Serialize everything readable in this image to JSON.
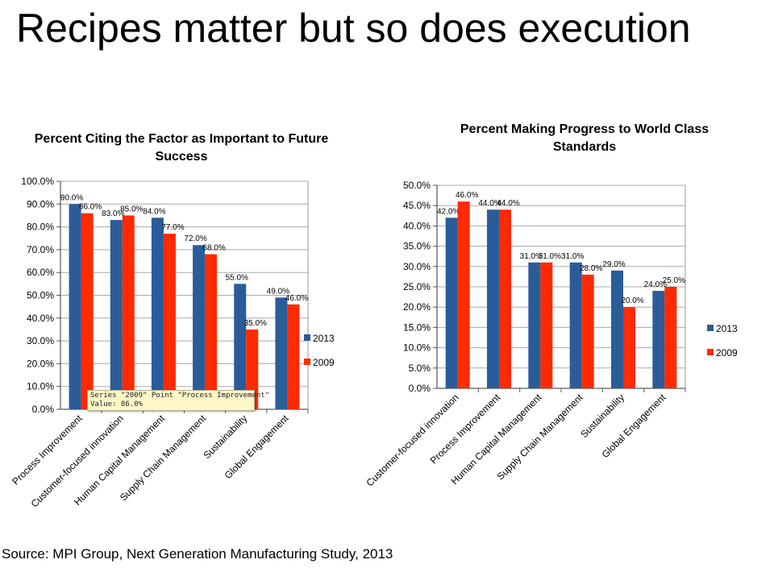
{
  "slide": {
    "title": "Recipes matter but so does execution",
    "source": "Source:  MPI Group, Next Generation Manufacturing Study, 2013"
  },
  "tooltip": {
    "line1": "Series \"2009\" Point \"Process Improvement\"",
    "line2": "Value: 86.0%"
  },
  "colors": {
    "series_2013": "#2b5c9a",
    "series_2009": "#ff2a00"
  },
  "chart_data": [
    {
      "type": "bar",
      "title": "Percent Citing the Factor as Important to Future Success",
      "categories": [
        "Process Improvement",
        "Customer-focused innovation",
        "Human Capital Management",
        "Supply Chain Management",
        "Sustainability",
        "Global Engagement"
      ],
      "series": [
        {
          "name": "2013",
          "values": [
            90,
            83,
            84,
            72,
            55,
            49
          ]
        },
        {
          "name": "2009",
          "values": [
            86,
            85,
            77,
            68,
            35,
            46
          ]
        }
      ],
      "ylim": [
        0,
        100
      ],
      "ytick_step": 10,
      "tick_labels": [
        "0.0%",
        "10.0%",
        "20.0%",
        "30.0%",
        "40.0%",
        "50.0%",
        "60.0%",
        "70.0%",
        "80.0%",
        "90.0%",
        "100.0%"
      ],
      "data_labels": [
        [
          "90.0%",
          "83.0%",
          "84.0%",
          "72.0%",
          "55.0%",
          "49.0%"
        ],
        [
          "86.0%",
          "85.0%",
          "77.0%",
          "68.0%",
          "35.0%",
          "46.0%"
        ]
      ],
      "grid": true,
      "legend": "right"
    },
    {
      "type": "bar",
      "title": "Percent Making Progress to World Class Standards",
      "categories": [
        "Customer-focused innovation",
        "Process Improvement",
        "Human Capital Management",
        "Supply Chain Management",
        "Sustainability",
        "Global Engagement"
      ],
      "series": [
        {
          "name": "2013",
          "values": [
            42,
            44,
            31,
            31,
            29,
            24
          ]
        },
        {
          "name": "2009",
          "values": [
            46,
            44,
            31,
            28,
            20,
            25
          ]
        }
      ],
      "ylim": [
        0,
        50
      ],
      "ytick_step": 5,
      "tick_labels": [
        "0.0%",
        "5.0%",
        "10.0%",
        "15.0%",
        "20.0%",
        "25.0%",
        "30.0%",
        "35.0%",
        "40.0%",
        "45.0%",
        "50.0%"
      ],
      "data_labels": [
        [
          "42.0%",
          "44.0%",
          "31.0%",
          "31.0%",
          "29.0%",
          "24.0%"
        ],
        [
          "46.0%",
          "44.0%",
          "31.0%",
          "28.0%",
          "20.0%",
          "25.0%"
        ]
      ],
      "grid": true,
      "legend": "right"
    }
  ]
}
